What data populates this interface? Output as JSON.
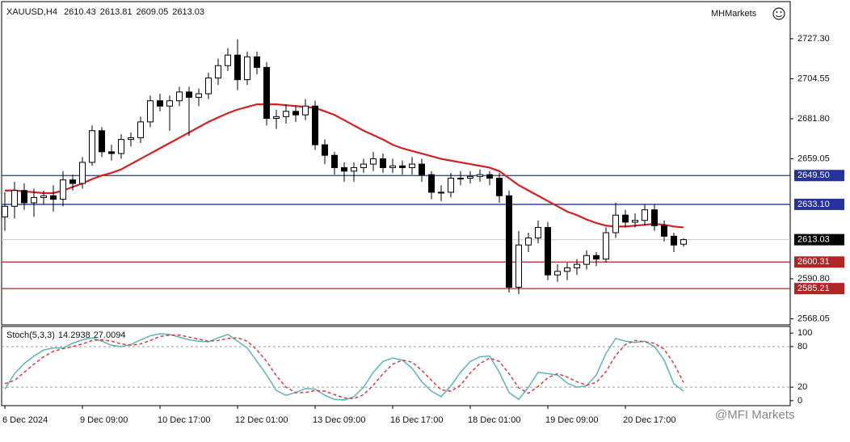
{
  "chart_data": [
    {
      "type": "candlestick",
      "title": "XAUUSD,H4",
      "categories": [
        "6 Dec 2024",
        null,
        null,
        null,
        null,
        null,
        null,
        null,
        "9 Dec 09:00",
        null,
        null,
        null,
        null,
        null,
        null,
        null,
        "10 Dec 17:00",
        null,
        null,
        null,
        null,
        null,
        null,
        null,
        "12 Dec 01:00",
        null,
        null,
        null,
        null,
        null,
        null,
        null,
        "13 Dec 09:00",
        null,
        null,
        null,
        null,
        null,
        null,
        null,
        "16 Dec 17:00",
        null,
        null,
        null,
        null,
        null,
        null,
        null,
        "18 Dec 01:00",
        null,
        null,
        null,
        null,
        null,
        null,
        null,
        "19 Dec 09:00",
        null,
        null,
        null,
        null,
        null,
        null,
        null,
        "20 Dec 17:00",
        null,
        null,
        null,
        null,
        null,
        null
      ],
      "open": [
        2626,
        2632,
        2641,
        2634,
        2637,
        2638,
        2636,
        2647,
        2645,
        2657,
        2675,
        2663,
        2662,
        2670,
        2671,
        2680,
        2692,
        2689,
        2692,
        2697,
        2694,
        2696,
        2705,
        2712,
        2718,
        2704,
        2717,
        2711,
        2682,
        2683,
        2686,
        2684,
        2689,
        2667,
        2661,
        2654,
        2652,
        2654,
        2656,
        2659,
        2654,
        2655,
        2654,
        2656,
        2650,
        2640,
        2640,
        2648,
        2648,
        2649,
        2650,
        2648,
        2638,
        2586,
        2610,
        2614,
        2620,
        2593,
        2595,
        2597,
        2599,
        2604,
        2602,
        2617,
        2627,
        2623,
        2624,
        2630,
        2621,
        2615,
        2610.43
      ],
      "high": [
        2640,
        2646,
        2645,
        2642,
        2641,
        2644,
        2652,
        2650,
        2660,
        2678,
        2677,
        2667,
        2673,
        2674,
        2683,
        2695,
        2696,
        2695,
        2700,
        2700,
        2699,
        2708,
        2716,
        2722,
        2727,
        2720,
        2720,
        2714,
        2687,
        2690,
        2689,
        2693,
        2692,
        2670,
        2663,
        2657,
        2657,
        2659,
        2663,
        2662,
        2659,
        2658,
        2660,
        2659,
        2652,
        2644,
        2651,
        2652,
        2652,
        2653,
        2652,
        2651,
        2641,
        2618,
        2617,
        2624,
        2623,
        2599,
        2600,
        2602,
        2607,
        2606,
        2620,
        2634,
        2630,
        2628,
        2633,
        2633,
        2624,
        2617,
        2613.81
      ],
      "low": [
        2618,
        2625,
        2630,
        2626,
        2633,
        2629,
        2632,
        2641,
        2642,
        2655,
        2660,
        2658,
        2659,
        2666,
        2668,
        2677,
        2686,
        2675,
        2689,
        2672,
        2689,
        2693,
        2701,
        2709,
        2698,
        2701,
        2707,
        2678,
        2676,
        2679,
        2680,
        2681,
        2664,
        2656,
        2650,
        2646,
        2646,
        2651,
        2652,
        2651,
        2651,
        2650,
        2650,
        2646,
        2636,
        2635,
        2637,
        2644,
        2645,
        2646,
        2644,
        2634,
        2583,
        2582,
        2606,
        2611,
        2590,
        2589,
        2590,
        2593,
        2596,
        2598,
        2600,
        2614,
        2620,
        2620,
        2621,
        2618,
        2612,
        2606,
        2609.05
      ],
      "close": [
        2632,
        2641,
        2634,
        2637,
        2638,
        2636,
        2647,
        2645,
        2657,
        2675,
        2663,
        2662,
        2670,
        2671,
        2680,
        2692,
        2689,
        2692,
        2697,
        2694,
        2696,
        2705,
        2712,
        2718,
        2704,
        2717,
        2711,
        2682,
        2683,
        2686,
        2684,
        2689,
        2667,
        2661,
        2654,
        2652,
        2654,
        2656,
        2659,
        2654,
        2655,
        2654,
        2656,
        2650,
        2640,
        2640,
        2648,
        2648,
        2649,
        2650,
        2648,
        2638,
        2586,
        2610,
        2614,
        2620,
        2593,
        2595,
        2597,
        2599,
        2604,
        2602,
        2617,
        2627,
        2623,
        2624,
        2630,
        2621,
        2615,
        2610,
        2613.03
      ],
      "up_color": "#ffffff",
      "down_color": "#000000",
      "ma": {
        "color": "#d42020",
        "values": [
          2641,
          2641,
          2640.5,
          2640,
          2639.5,
          2639.5,
          2641,
          2643,
          2645,
          2647.5,
          2649.5,
          2651,
          2653,
          2656,
          2659,
          2662,
          2665,
          2668,
          2671,
          2674,
          2677,
          2680,
          2682.5,
          2685,
          2687,
          2688.5,
          2690,
          2690,
          2690,
          2689.5,
          2689,
          2688.5,
          2688,
          2686,
          2684,
          2681,
          2678,
          2675,
          2672.5,
          2670,
          2667,
          2665,
          2663.5,
          2662,
          2660.5,
          2659,
          2658,
          2657,
          2656,
          2655,
          2654,
          2652,
          2648,
          2644,
          2641,
          2638,
          2635,
          2632,
          2629,
          2627,
          2624.5,
          2622.5,
          2621,
          2620.5,
          2620.5,
          2621,
          2621.5,
          2622,
          2621.5,
          2620.5,
          2620
        ]
      },
      "levels": [
        {
          "value": 2649.5,
          "label": "2649.50",
          "color": "#26339a"
        },
        {
          "value": 2633.1,
          "label": "2633.10",
          "color": "#26339a"
        },
        {
          "value": 2600.31,
          "color": "#b02525"
        },
        {
          "value": 2585.21,
          "color": "#b02525"
        }
      ],
      "last_price_line": {
        "color": "#c8c8c8",
        "box_color": "#000000"
      },
      "ylim": [
        2564.6,
        2748.4
      ],
      "yticks": [
        {
          "value": 2727.3,
          "label": "2727.30"
        },
        2704.55,
        {
          "value": 2681.8,
          "label": "2681.80"
        },
        2659.05,
        {
          "value": 2590.8,
          "label": "2590.80"
        },
        2568.05
      ]
    },
    {
      "type": "line",
      "title": "Stoch(5,3,3)",
      "series": [
        {
          "color": "#5fb3b8",
          "values": [
            17,
            40,
            55,
            66,
            75,
            78,
            78,
            85,
            90,
            93,
            88,
            82,
            80,
            83,
            90,
            96,
            99,
            98,
            94,
            90,
            88,
            87,
            93,
            98,
            88,
            78,
            58,
            38,
            15,
            8,
            12,
            18,
            17,
            8,
            2,
            1,
            6,
            20,
            42,
            58,
            63,
            60,
            48,
            28,
            14,
            6,
            22,
            42,
            58,
            65,
            66,
            42,
            12,
            2,
            20,
            42,
            40,
            38,
            26,
            20,
            22,
            38,
            70,
            92,
            88,
            86,
            88,
            80,
            60,
            25,
            14.2938
          ]
        },
        {
          "color": "#d04040",
          "dashed": true,
          "values": [
            25,
            30,
            42,
            54,
            65,
            73,
            77,
            80,
            84,
            89,
            90,
            88,
            84,
            82,
            84,
            89,
            95,
            97,
            97,
            94,
            91,
            88,
            89,
            92,
            93,
            88,
            75,
            58,
            37,
            20,
            12,
            12,
            15,
            14,
            9,
            4,
            3,
            9,
            23,
            40,
            54,
            60,
            57,
            45,
            30,
            16,
            14,
            23,
            41,
            55,
            63,
            58,
            40,
            19,
            11,
            21,
            34,
            40,
            35,
            28,
            23,
            27,
            43,
            67,
            83,
            89,
            87,
            85,
            76,
            55,
            27.0094
          ]
        }
      ],
      "levels": [
        80,
        20
      ],
      "ylim": [
        -7.3,
        109.8
      ],
      "yticks": [
        100,
        80,
        20,
        0
      ]
    }
  ],
  "brand": "MHMarkets",
  "watermark": "@MFI Markets"
}
